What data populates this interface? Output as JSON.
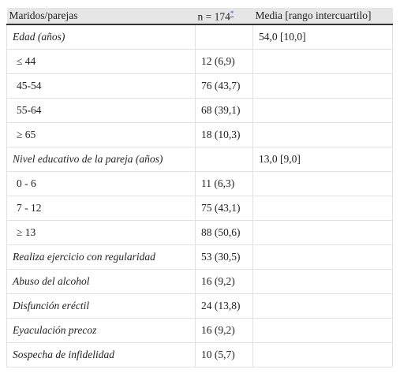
{
  "table": {
    "header": {
      "label": "Maridos/parejas",
      "n": "n = 174",
      "note": "*",
      "mean": "Media [rango intercuartilo]"
    },
    "rows": [
      {
        "label": "Edad (años)",
        "italic": true,
        "mean": "54,0 [10,0]"
      },
      {
        "label": "≤ 44",
        "italic": false,
        "n": "12 (6,9)"
      },
      {
        "label": "45-54",
        "italic": false,
        "n": "76 (43,7)"
      },
      {
        "label": "55-64",
        "italic": false,
        "n": "68 (39,1)"
      },
      {
        "label": "≥ 65",
        "italic": false,
        "n": "18 (10,3)"
      },
      {
        "label": "Nivel educativo de la pareja (años)",
        "italic": true,
        "mean": "13,0 [9,0]"
      },
      {
        "label": "0 - 6",
        "italic": false,
        "n": "11 (6,3)"
      },
      {
        "label": "7 - 12",
        "italic": false,
        "n": "75 (43,1)"
      },
      {
        "label": "≥ 13",
        "italic": false,
        "n": "88 (50,6)"
      },
      {
        "label": "Realiza ejercicio con regularidad",
        "italic": true,
        "n": "53 (30,5)"
      },
      {
        "label": "Abuso del alcohol",
        "italic": true,
        "n": "16 (9,2)"
      },
      {
        "label": "Disfunción eréctil",
        "italic": true,
        "n": "24 (13,8)"
      },
      {
        "label": "Eyaculación precoz",
        "italic": true,
        "n": "16 (9,2)"
      },
      {
        "label": "Sospecha de infidelidad",
        "italic": true,
        "n": "10 (5,7)"
      }
    ]
  }
}
